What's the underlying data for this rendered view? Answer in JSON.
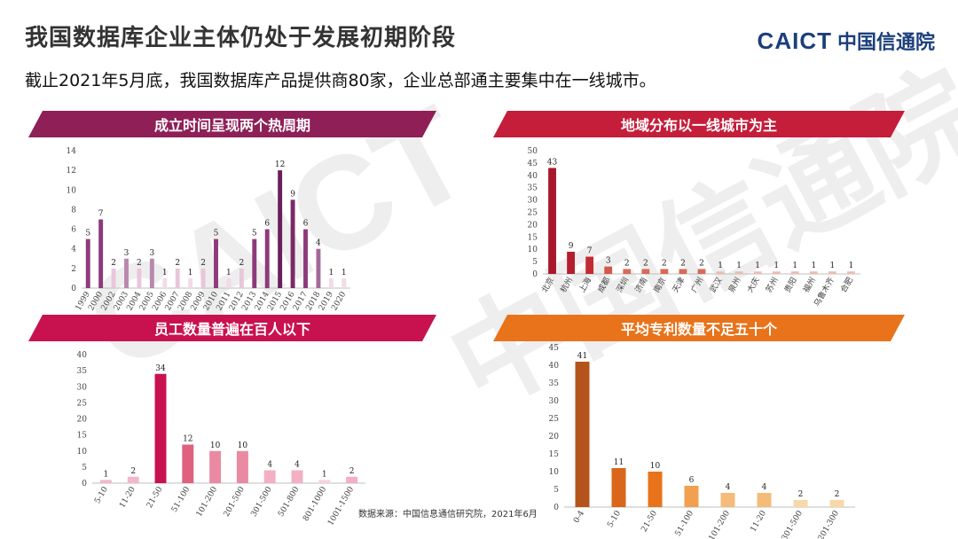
{
  "page": {
    "title": "我国数据库企业主体仍处于发展初期阶段",
    "subtitle": "截止2021年5月底，我国数据库产品提供商80家，企业总部通主要集中在一线城市。",
    "logo_en": "CAICT",
    "logo_cn": "中国信通院",
    "watermark_en": "CAICT",
    "watermark_cn": "中国信通院",
    "source": "数据来源：中国信息通信研究院，2021年6月"
  },
  "colors": {
    "banner_purple": "#8e1f57",
    "banner_pink": "#c8124f",
    "banner_red": "#c41e3a",
    "banner_orange": "#e8731a"
  },
  "chart_data": [
    {
      "id": "founding",
      "type": "bar",
      "title": "成立时间呈现两个热周期",
      "categories": [
        "1999",
        "2000",
        "2002",
        "2003",
        "2004",
        "2005",
        "2006",
        "2007",
        "2008",
        "2009",
        "2010",
        "2011",
        "2012",
        "2013",
        "2014",
        "2015",
        "2016",
        "2017",
        "2018",
        "2019",
        "2020"
      ],
      "values": [
        5,
        7,
        2,
        3,
        2,
        3,
        1,
        2,
        1,
        2,
        5,
        1,
        2,
        5,
        6,
        12,
        9,
        6,
        4,
        1,
        1
      ],
      "colors": [
        "#8e3a7a",
        "#8e3a7a",
        "#e8c6db",
        "#b888ae",
        "#e8c6db",
        "#b888ae",
        "#f0dbe7",
        "#e8c6db",
        "#f0dbe7",
        "#e8c6db",
        "#8e3a7a",
        "#f0dbe7",
        "#e8c6db",
        "#8e3a7a",
        "#8e3a7a",
        "#6b1f5a",
        "#7a2a66",
        "#8e3a7a",
        "#a56a98",
        "#f0dbe7",
        "#f0dbe7"
      ],
      "ylim": [
        0,
        14
      ],
      "yticks": [
        0,
        2,
        4,
        6,
        8,
        10,
        12,
        14
      ]
    },
    {
      "id": "region",
      "type": "bar",
      "title": "地域分布以一线城市为主",
      "categories": [
        "北京",
        "杭州",
        "上海",
        "成都",
        "深圳",
        "济南",
        "南京",
        "天津",
        "广州",
        "武汉",
        "泉州",
        "大庆",
        "苏州",
        "贵阳",
        "福州",
        "乌鲁木齐",
        "合肥"
      ],
      "values": [
        43,
        9,
        7,
        3,
        2,
        2,
        2,
        2,
        2,
        1,
        1,
        1,
        1,
        1,
        1,
        1,
        1
      ],
      "colors": [
        "#a8182a",
        "#b51e2e",
        "#c42a33",
        "#d4584a",
        "#d86a5a",
        "#d86a5a",
        "#d86a5a",
        "#d86a5a",
        "#d86a5a",
        "#ecbcb2",
        "#ecbcb2",
        "#ecbcb2",
        "#ecbcb2",
        "#ecbcb2",
        "#ecbcb2",
        "#ecbcb2",
        "#ecbcb2"
      ],
      "ylim": [
        0,
        50
      ],
      "yticks": [
        0,
        5,
        10,
        15,
        20,
        25,
        30,
        35,
        40,
        45,
        50
      ]
    },
    {
      "id": "employees",
      "type": "bar",
      "title": "员工数量普遍在百人以下",
      "categories": [
        "5-10",
        "11-20",
        "21-50",
        "51-100",
        "101-200",
        "201-500",
        "301-500",
        "501-800",
        "801-1000",
        "1001-1500"
      ],
      "values": [
        1,
        2,
        34,
        12,
        10,
        10,
        4,
        4,
        1,
        2
      ],
      "colors": [
        "#f2b8c8",
        "#f2b8c8",
        "#c8124f",
        "#e0607f",
        "#ea8aa2",
        "#ea8aa2",
        "#f2b0c2",
        "#f2b0c2",
        "#f6d2dc",
        "#f2b0c2"
      ],
      "ylim": [
        0,
        40
      ],
      "yticks": [
        0,
        5,
        10,
        15,
        20,
        25,
        30,
        35,
        40
      ]
    },
    {
      "id": "patents",
      "type": "bar",
      "title": "平均专利数量不足五十个",
      "categories": [
        "0-4",
        "5-10",
        "21-50",
        "51-100",
        "101-200",
        "11-20",
        "301-500",
        "201-300"
      ],
      "values": [
        41,
        11,
        10,
        6,
        4,
        4,
        2,
        2
      ],
      "colors": [
        "#b5541a",
        "#d9661a",
        "#e8731a",
        "#f0a050",
        "#f4bc78",
        "#f4bc78",
        "#f8d8a8",
        "#f8d8a8"
      ],
      "ylim": [
        0,
        45
      ],
      "yticks": [
        0,
        5,
        10,
        15,
        20,
        25,
        30,
        35,
        40,
        45
      ]
    }
  ]
}
